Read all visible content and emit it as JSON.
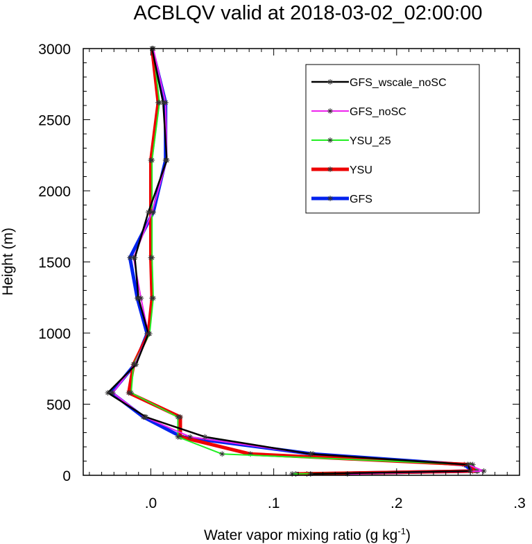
{
  "chart_data": {
    "type": "line",
    "title": "ACBLQV valid at 2018-03-02_02:00:00",
    "xlabel": "Water vapor mixing ratio (g kg",
    "xlabel_sup": "-1",
    "xlabel_end": ")",
    "ylabel": "Height (m)",
    "xlim": [
      -0.055,
      0.3
    ],
    "ylim": [
      0,
      3000
    ],
    "x_ticks": [
      0.0,
      0.1,
      0.2,
      0.3
    ],
    "x_tick_labels": [
      ".0",
      ".1",
      ".2",
      ".3"
    ],
    "y_ticks": [
      0,
      500,
      1000,
      1500,
      2000,
      2500,
      3000
    ],
    "y_tick_labels": [
      "0",
      "500",
      "1000",
      "1500",
      "2000",
      "2500",
      "3000"
    ],
    "legend_position": "top-right",
    "heights": [
      10,
      30,
      75,
      150,
      270,
      410,
      580,
      780,
      995,
      1245,
      1530,
      1850,
      2215,
      2620,
      3000
    ],
    "series": [
      {
        "name": "GFS",
        "color": "#0022ee",
        "width": 5,
        "values": [
          0.127,
          0.262,
          0.255,
          0.132,
          0.025,
          -0.006,
          -0.032,
          -0.013,
          -0.003,
          -0.011,
          -0.017,
          0.002,
          0.012,
          0.012,
          0.001
        ]
      },
      {
        "name": "YSU",
        "color": "#ee0000",
        "width": 5,
        "values": [
          0.118,
          0.265,
          0.26,
          0.081,
          0.024,
          0.024,
          -0.018,
          -0.014,
          -0.002,
          0.001,
          0.0,
          0.0,
          0.0,
          0.006,
          0.001
        ]
      },
      {
        "name": "YSU_25",
        "color": "#22ee22",
        "width": 2,
        "values": [
          0.115,
          0.266,
          0.262,
          0.058,
          0.022,
          0.022,
          -0.016,
          -0.014,
          -0.001,
          0.002,
          0.001,
          0.001,
          0.001,
          0.007,
          0.002
        ]
      },
      {
        "name": "GFS_noSC",
        "color": "#ee22ee",
        "width": 2,
        "values": [
          0.16,
          0.271,
          0.258,
          0.13,
          0.032,
          -0.005,
          -0.031,
          -0.013,
          -0.002,
          -0.008,
          -0.014,
          0.001,
          0.013,
          0.012,
          0.002
        ]
      },
      {
        "name": "GFS_wscale_noSC",
        "color": "#000000",
        "width": 2.5,
        "values": [
          0.13,
          0.26,
          0.258,
          0.13,
          0.044,
          -0.004,
          -0.035,
          -0.012,
          -0.002,
          -0.01,
          -0.013,
          -0.002,
          0.013,
          0.01,
          0.001
        ]
      }
    ],
    "legend_order": [
      "GFS_wscale_noSC",
      "GFS_noSC",
      "YSU_25",
      "YSU",
      "GFS"
    ]
  }
}
